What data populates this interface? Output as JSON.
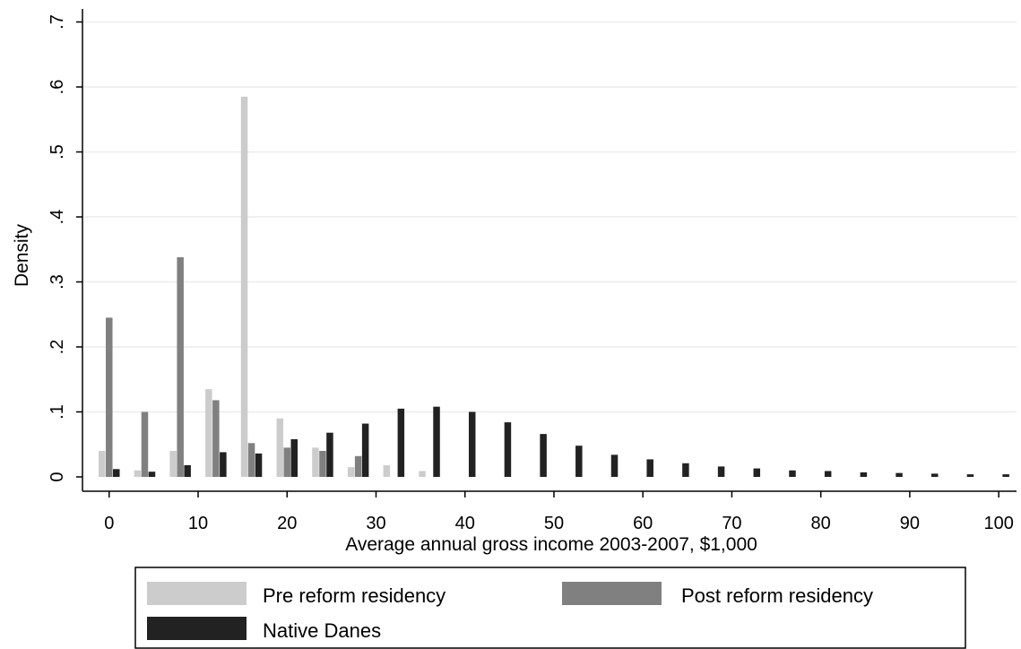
{
  "chart_data": {
    "type": "bar",
    "title": "",
    "xlabel": "Average annual gross income 2003-2007, $1,000",
    "ylabel": "Density",
    "xlim": [
      -3,
      102
    ],
    "ylim": [
      0,
      0.7
    ],
    "x_ticks": [
      0,
      10,
      20,
      30,
      40,
      50,
      60,
      70,
      80,
      90,
      100
    ],
    "x_tick_labels": [
      "0",
      "10",
      "20",
      "30",
      "40",
      "50",
      "60",
      "70",
      "80",
      "90",
      "100"
    ],
    "y_ticks": [
      0,
      0.1,
      0.2,
      0.3,
      0.4,
      0.5,
      0.6,
      0.7
    ],
    "y_tick_labels": [
      "0",
      ".1",
      ".2",
      ".3",
      ".4",
      ".5",
      ".6",
      ".7"
    ],
    "grid": true,
    "legend_position": "bottom",
    "x": [
      0,
      4,
      8,
      12,
      16,
      20,
      24,
      28,
      32,
      36,
      40,
      44,
      48,
      52,
      56,
      60,
      64,
      68,
      72,
      76,
      80,
      84,
      88,
      92,
      96,
      100
    ],
    "series": [
      {
        "name": "Pre reform residency",
        "color": "#cccccc",
        "values": [
          0.04,
          0.01,
          0.04,
          0.135,
          0.585,
          0.09,
          0.045,
          0.015,
          0.018,
          0.009,
          0,
          0,
          0,
          0,
          0,
          0,
          0,
          0,
          0,
          0,
          0,
          0,
          0,
          0,
          0,
          0
        ]
      },
      {
        "name": "Post reform residency",
        "color": "#808080",
        "values": [
          0.245,
          0.1,
          0.338,
          0.118,
          0.052,
          0.045,
          0.04,
          0.032,
          0,
          0,
          0,
          0,
          0,
          0,
          0,
          0,
          0,
          0,
          0,
          0,
          0,
          0,
          0,
          0,
          0,
          0
        ]
      },
      {
        "name": "Native Danes",
        "color": "#222222",
        "values": [
          0.012,
          0.008,
          0.018,
          0.038,
          0.036,
          0.058,
          0.068,
          0.082,
          0.105,
          0.108,
          0.1,
          0.084,
          0.066,
          0.048,
          0.034,
          0.027,
          0.021,
          0.016,
          0.013,
          0.01,
          0.009,
          0.007,
          0.006,
          0.005,
          0.004,
          0.004
        ]
      }
    ]
  }
}
